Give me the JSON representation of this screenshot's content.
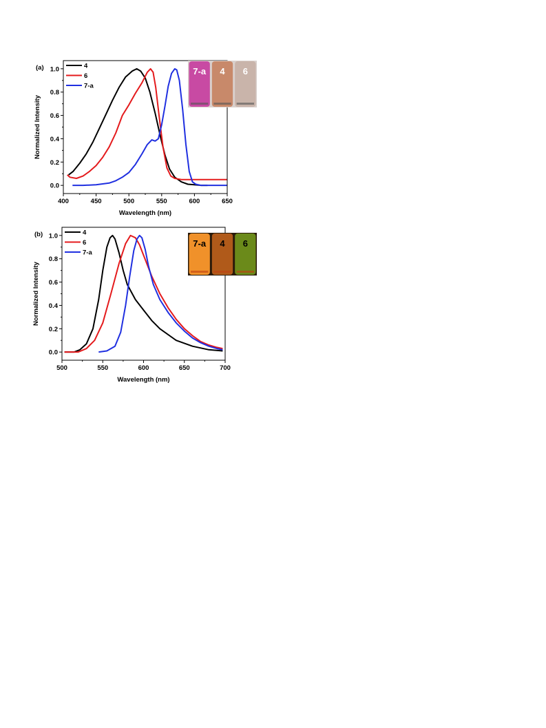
{
  "chart_data": [
    {
      "type": "line",
      "panel_label": "(a)",
      "xlabel": "Wavelength (nm)",
      "ylabel": "Normalized Intensity",
      "xlim": [
        400,
        650
      ],
      "ylim": [
        -0.07,
        1.07
      ],
      "x_ticks": [
        400,
        450,
        500,
        550,
        600,
        650
      ],
      "y_ticks": [
        0.0,
        0.2,
        0.4,
        0.6,
        0.8,
        1.0
      ],
      "x_tick_labels": [
        "400",
        "450",
        "500",
        "550",
        "600",
        "650"
      ],
      "y_tick_labels": [
        "0.0",
        "0.2",
        "0.4",
        "0.6",
        "0.8",
        "1.0"
      ],
      "legend_position": "top-left",
      "series": [
        {
          "name": "4",
          "color": "#000000",
          "x": [
            408,
            415,
            425,
            435,
            445,
            455,
            465,
            475,
            485,
            495,
            505,
            512,
            518,
            525,
            532,
            540,
            548,
            555,
            562,
            570,
            580,
            590,
            600,
            610,
            620
          ],
          "y": [
            0.09,
            0.12,
            0.19,
            0.27,
            0.37,
            0.49,
            0.61,
            0.73,
            0.84,
            0.93,
            0.98,
            1.0,
            0.98,
            0.92,
            0.8,
            0.62,
            0.42,
            0.26,
            0.14,
            0.07,
            0.03,
            0.01,
            0.005,
            0.0,
            0.0
          ]
        },
        {
          "name": "6",
          "color": "#e41a1c",
          "x": [
            406,
            410,
            420,
            430,
            440,
            450,
            460,
            470,
            480,
            490,
            500,
            510,
            520,
            528,
            533,
            537,
            541,
            546,
            552,
            558,
            564,
            570,
            580,
            600,
            620,
            640,
            650
          ],
          "y": [
            0.09,
            0.07,
            0.06,
            0.08,
            0.12,
            0.17,
            0.24,
            0.33,
            0.45,
            0.6,
            0.69,
            0.79,
            0.88,
            0.97,
            1.0,
            0.97,
            0.84,
            0.6,
            0.33,
            0.15,
            0.08,
            0.06,
            0.05,
            0.05,
            0.05,
            0.05,
            0.05
          ]
        },
        {
          "name": "7-a",
          "color": "#1f2fe0",
          "x": [
            414,
            430,
            450,
            470,
            480,
            490,
            500,
            510,
            520,
            528,
            535,
            540,
            545,
            550,
            555,
            560,
            565,
            570,
            573,
            577,
            582,
            587,
            592,
            597,
            602,
            610,
            630,
            650
          ],
          "y": [
            0.0,
            0.0,
            0.005,
            0.02,
            0.04,
            0.07,
            0.11,
            0.18,
            0.27,
            0.35,
            0.39,
            0.38,
            0.4,
            0.52,
            0.68,
            0.85,
            0.96,
            1.0,
            0.99,
            0.9,
            0.65,
            0.35,
            0.12,
            0.03,
            0.01,
            0.0,
            0.0,
            0.0
          ]
        }
      ],
      "inset": {
        "vials": [
          {
            "label": "7-a",
            "color": "#c84aa3",
            "text_color": "#ffffff"
          },
          {
            "label": "4",
            "color": "#c8896a",
            "text_color": "#ffffff"
          },
          {
            "label": "6",
            "color": "#c9b4aa",
            "text_color": "#ffffff"
          }
        ]
      }
    },
    {
      "type": "line",
      "panel_label": "(b)",
      "xlabel": "Wavelength (nm)",
      "ylabel": "Normalized Intensity",
      "xlim": [
        500,
        700
      ],
      "ylim": [
        -0.07,
        1.07
      ],
      "x_ticks": [
        500,
        550,
        600,
        650,
        700
      ],
      "y_ticks": [
        0.0,
        0.2,
        0.4,
        0.6,
        0.8,
        1.0
      ],
      "x_tick_labels": [
        "500",
        "550",
        "600",
        "650",
        "700"
      ],
      "y_tick_labels": [
        "0.0",
        "0.2",
        "0.4",
        "0.6",
        "0.8",
        "1.0"
      ],
      "legend_position": "top-left",
      "series": [
        {
          "name": "4",
          "color": "#000000",
          "x": [
            503,
            515,
            522,
            530,
            538,
            545,
            550,
            555,
            559,
            562,
            565,
            570,
            575,
            580,
            590,
            600,
            610,
            620,
            640,
            660,
            680,
            697
          ],
          "y": [
            0.0,
            0.0,
            0.02,
            0.07,
            0.2,
            0.45,
            0.7,
            0.9,
            0.98,
            1.0,
            0.97,
            0.85,
            0.7,
            0.58,
            0.45,
            0.36,
            0.27,
            0.2,
            0.1,
            0.05,
            0.02,
            0.01
          ]
        },
        {
          "name": "6",
          "color": "#e41a1c",
          "x": [
            503,
            520,
            530,
            540,
            550,
            560,
            570,
            578,
            584,
            590,
            595,
            600,
            610,
            620,
            630,
            640,
            650,
            660,
            670,
            680,
            690,
            697
          ],
          "y": [
            0.0,
            0.0,
            0.03,
            0.1,
            0.25,
            0.5,
            0.76,
            0.93,
            1.0,
            0.98,
            0.92,
            0.83,
            0.65,
            0.5,
            0.38,
            0.28,
            0.2,
            0.14,
            0.09,
            0.06,
            0.04,
            0.03
          ]
        },
        {
          "name": "7-a",
          "color": "#1f2fe0",
          "x": [
            545,
            555,
            565,
            572,
            578,
            583,
            588,
            592,
            595,
            598,
            602,
            606,
            612,
            620,
            630,
            640,
            650,
            660,
            670,
            680,
            690,
            697
          ],
          "y": [
            0.0,
            0.01,
            0.05,
            0.17,
            0.4,
            0.65,
            0.87,
            0.97,
            1.0,
            0.98,
            0.88,
            0.74,
            0.58,
            0.45,
            0.34,
            0.25,
            0.18,
            0.12,
            0.08,
            0.05,
            0.03,
            0.02
          ]
        }
      ],
      "inset": {
        "vials": [
          {
            "label": "7-a",
            "color": "#f0912a",
            "text_color": "#000000"
          },
          {
            "label": "4",
            "color": "#b05a1a",
            "text_color": "#000000"
          },
          {
            "label": "6",
            "color": "#6b8a1a",
            "text_color": "#000000"
          }
        ]
      }
    }
  ]
}
